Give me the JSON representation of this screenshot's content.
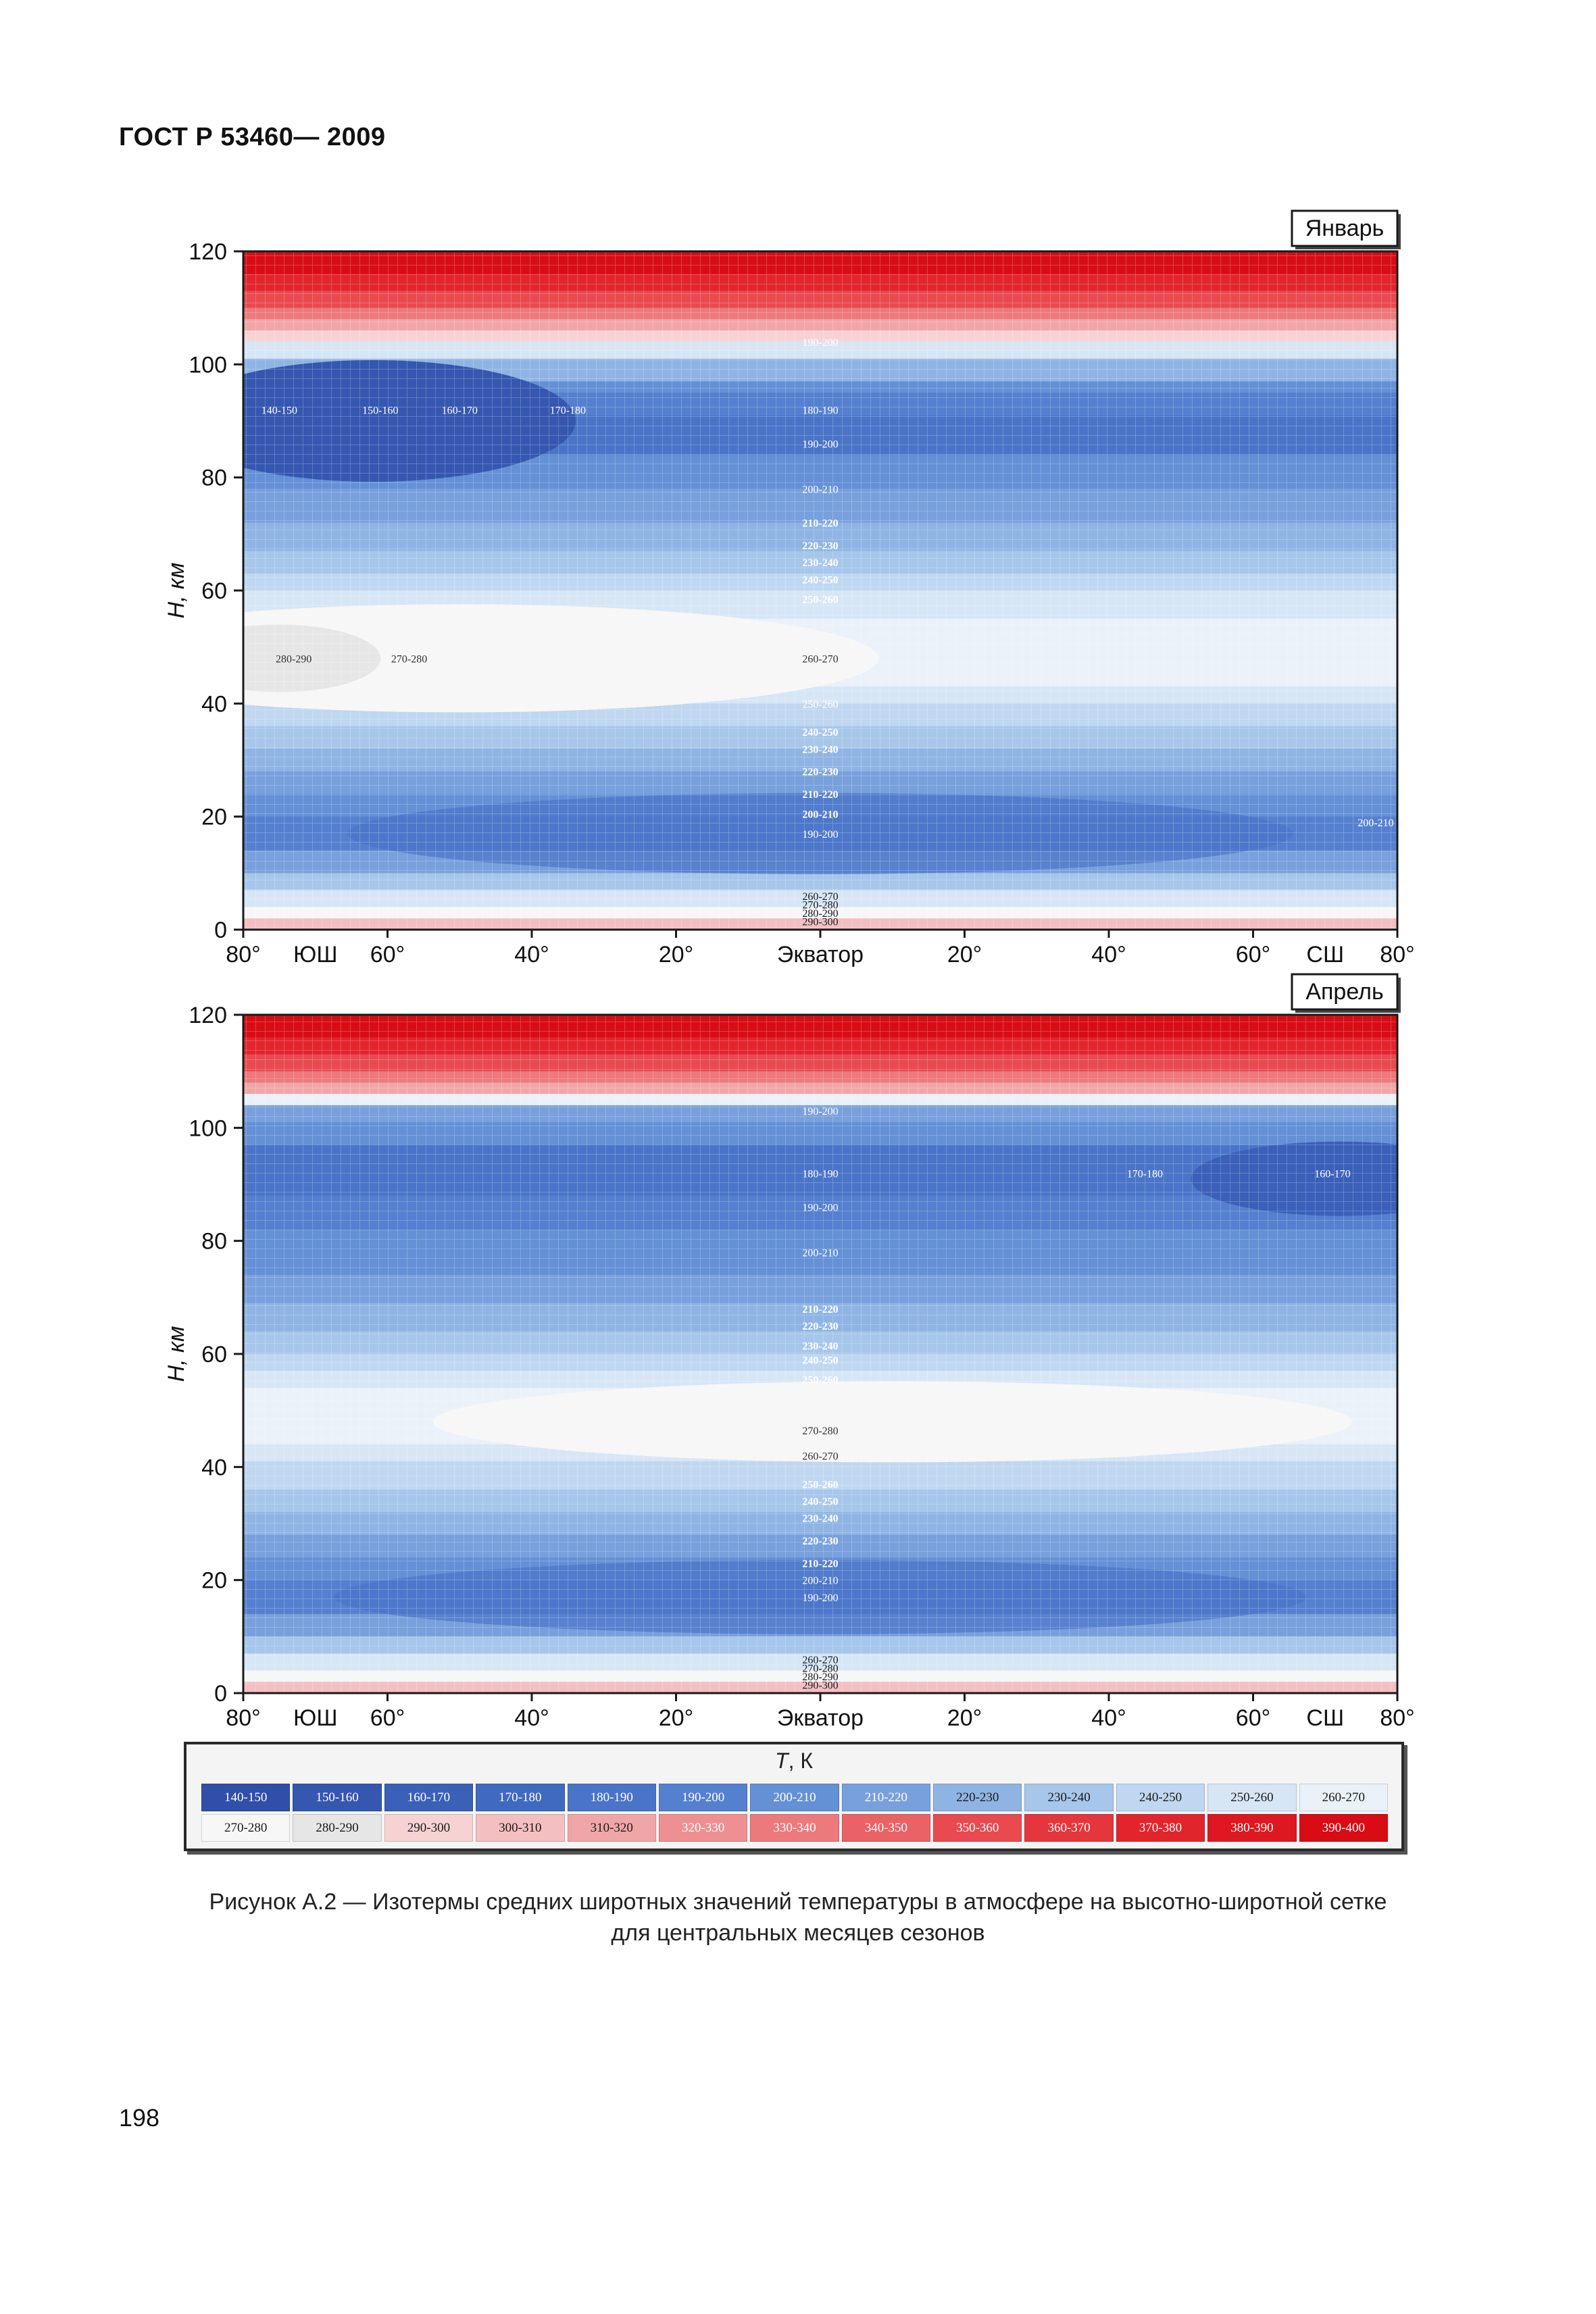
{
  "document": {
    "header": "ГОСТ Р 53460— 2009",
    "page_number": "198",
    "caption_line1": "Рисунок  А.2  — Изотермы средних широтных значений температуры в атмосфере на высотно-широтной сетке",
    "caption_line2": "для  центральных  месяцев  сезонов"
  },
  "chart_data": [
    {
      "type": "heatmap",
      "title": "Январь",
      "ylabel": "H, км",
      "xlabel": "",
      "ylim": [
        0,
        120
      ],
      "yticks": [
        0,
        20,
        40,
        60,
        80,
        100,
        120
      ],
      "ytick_labels": [
        "0",
        "20",
        "40",
        "60",
        "80",
        "100",
        "120"
      ],
      "xlim": [
        -80,
        80
      ],
      "xticks": [
        -80,
        -60,
        -40,
        -20,
        0,
        20,
        40,
        60,
        80
      ],
      "xtick_labels": [
        "80°",
        "60°",
        "40°",
        "20°",
        "Экватор",
        "20°",
        "40°",
        "60°",
        "80°"
      ],
      "hemisphere_labels": [
        "ЮШ",
        "СШ"
      ],
      "isotherm_labels": [
        {
          "text": "190-200",
          "lat": 0,
          "h": 104
        },
        {
          "text": "140-150",
          "lat": -75,
          "h": 92
        },
        {
          "text": "150-160",
          "lat": -61,
          "h": 92
        },
        {
          "text": "160-170",
          "lat": -50,
          "h": 92
        },
        {
          "text": "170-180",
          "lat": -35,
          "h": 92
        },
        {
          "text": "180-190",
          "lat": 0,
          "h": 92
        },
        {
          "text": "190-200",
          "lat": 0,
          "h": 86
        },
        {
          "text": "200-210",
          "lat": 0,
          "h": 78
        },
        {
          "text": "210-220",
          "lat": 0,
          "h": 72
        },
        {
          "text": "220-230",
          "lat": 0,
          "h": 68
        },
        {
          "text": "230-240",
          "lat": 0,
          "h": 65
        },
        {
          "text": "240-250",
          "lat": 0,
          "h": 62
        },
        {
          "text": "250-260",
          "lat": 0,
          "h": 58.5
        },
        {
          "text": "280-290",
          "lat": -73,
          "h": 48
        },
        {
          "text": "270-280",
          "lat": -57,
          "h": 48
        },
        {
          "text": "260-270",
          "lat": 0,
          "h": 48
        },
        {
          "text": "250-260",
          "lat": 0,
          "h": 40
        },
        {
          "text": "240-250",
          "lat": 0,
          "h": 35
        },
        {
          "text": "230-240",
          "lat": 0,
          "h": 32
        },
        {
          "text": "220-230",
          "lat": 0,
          "h": 28
        },
        {
          "text": "210-220",
          "lat": 0,
          "h": 24
        },
        {
          "text": "200-210",
          "lat": 0,
          "h": 20.5
        },
        {
          "text": "190-200",
          "lat": 0,
          "h": 17
        },
        {
          "text": "200-210",
          "lat": 77,
          "h": 19
        },
        {
          "text": "260-270",
          "lat": 0,
          "h": 6
        },
        {
          "text": "270-280",
          "lat": 0,
          "h": 4.5
        },
        {
          "text": "280-290",
          "lat": 0,
          "h": 3
        },
        {
          "text": "290-300",
          "lat": 0,
          "h": 1.5
        }
      ]
    },
    {
      "type": "heatmap",
      "title": "Апрель",
      "ylabel": "H, км",
      "xlabel": "",
      "ylim": [
        0,
        120
      ],
      "yticks": [
        0,
        20,
        40,
        60,
        80,
        100,
        120
      ],
      "ytick_labels": [
        "0",
        "20",
        "40",
        "60",
        "80",
        "100",
        "120"
      ],
      "xlim": [
        -80,
        80
      ],
      "xticks": [
        -80,
        -60,
        -40,
        -20,
        0,
        20,
        40,
        60,
        80
      ],
      "xtick_labels": [
        "80°",
        "60°",
        "40°",
        "20°",
        "Экватор",
        "20°",
        "40°",
        "60°",
        "80°"
      ],
      "hemisphere_labels": [
        "ЮШ",
        "СШ"
      ],
      "isotherm_labels": [
        {
          "text": "190-200",
          "lat": 0,
          "h": 103
        },
        {
          "text": "180-190",
          "lat": 0,
          "h": 92
        },
        {
          "text": "170-180",
          "lat": 45,
          "h": 92
        },
        {
          "text": "160-170",
          "lat": 71,
          "h": 92
        },
        {
          "text": "190-200",
          "lat": 0,
          "h": 86
        },
        {
          "text": "200-210",
          "lat": 0,
          "h": 78
        },
        {
          "text": "210-220",
          "lat": 0,
          "h": 68
        },
        {
          "text": "220-230",
          "lat": 0,
          "h": 65
        },
        {
          "text": "230-240",
          "lat": 0,
          "h": 61.5
        },
        {
          "text": "240-250",
          "lat": 0,
          "h": 59
        },
        {
          "text": "250-260",
          "lat": 0,
          "h": 55.5
        },
        {
          "text": "270-280",
          "lat": 0,
          "h": 46.5
        },
        {
          "text": "260-270",
          "lat": 0,
          "h": 42
        },
        {
          "text": "250-260",
          "lat": 0,
          "h": 37
        },
        {
          "text": "240-250",
          "lat": 0,
          "h": 34
        },
        {
          "text": "230-240",
          "lat": 0,
          "h": 31
        },
        {
          "text": "220-230",
          "lat": 0,
          "h": 27
        },
        {
          "text": "210-220",
          "lat": 0,
          "h": 23
        },
        {
          "text": "200-210",
          "lat": 0,
          "h": 20
        },
        {
          "text": "190-200",
          "lat": 0,
          "h": 17
        },
        {
          "text": "260-270",
          "lat": 0,
          "h": 6
        },
        {
          "text": "270-280",
          "lat": 0,
          "h": 4.5
        },
        {
          "text": "280-290",
          "lat": 0,
          "h": 3
        },
        {
          "text": "290-300",
          "lat": 0,
          "h": 1.5
        }
      ]
    }
  ],
  "legend": {
    "title_var": "T",
    "title_unit": ", К",
    "items": [
      {
        "label": "140-150",
        "color": "#2f4fa8"
      },
      {
        "label": "150-160",
        "color": "#3557b0"
      },
      {
        "label": "160-170",
        "color": "#3a60b8"
      },
      {
        "label": "170-180",
        "color": "#4069c0"
      },
      {
        "label": "180-190",
        "color": "#4a74c8"
      },
      {
        "label": "190-200",
        "color": "#5580cf"
      },
      {
        "label": "200-210",
        "color": "#6490d6"
      },
      {
        "label": "210-220",
        "color": "#78a0dc"
      },
      {
        "label": "220-230",
        "color": "#8fb4e4"
      },
      {
        "label": "230-240",
        "color": "#a6c6ea"
      },
      {
        "label": "240-250",
        "color": "#bfd7f0"
      },
      {
        "label": "250-260",
        "color": "#d6e6f5"
      },
      {
        "label": "260-270",
        "color": "#eaf1f8"
      },
      {
        "label": "270-280",
        "color": "#f7f7f7"
      },
      {
        "label": "280-290",
        "color": "#e6e6e6"
      },
      {
        "label": "290-300",
        "color": "#f6d2d2"
      },
      {
        "label": "300-310",
        "color": "#f3bfc0"
      },
      {
        "label": "310-320",
        "color": "#f0a6a8"
      },
      {
        "label": "320-330",
        "color": "#ee9092"
      },
      {
        "label": "330-340",
        "color": "#ec797c"
      },
      {
        "label": "340-350",
        "color": "#ea6266"
      },
      {
        "label": "350-360",
        "color": "#e84a50"
      },
      {
        "label": "360-370",
        "color": "#e5363d"
      },
      {
        "label": "370-380",
        "color": "#e2252d"
      },
      {
        "label": "380-390",
        "color": "#de1820"
      },
      {
        "label": "390-400",
        "color": "#d80c15"
      }
    ]
  }
}
